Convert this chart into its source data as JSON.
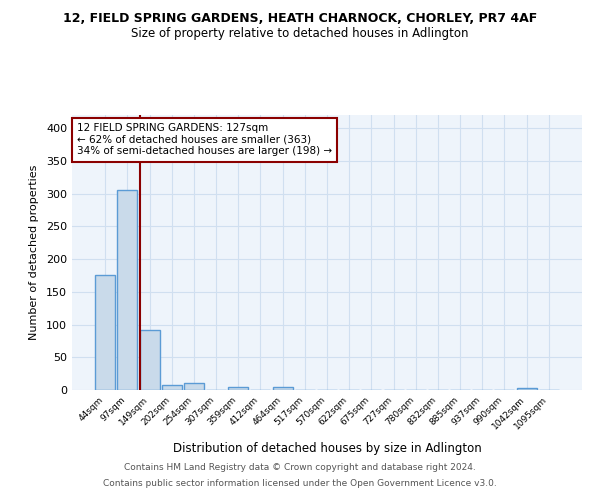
{
  "title1": "12, FIELD SPRING GARDENS, HEATH CHARNOCK, CHORLEY, PR7 4AF",
  "title2": "Size of property relative to detached houses in Adlington",
  "xlabel": "Distribution of detached houses by size in Adlington",
  "ylabel": "Number of detached properties",
  "bin_labels": [
    "44sqm",
    "97sqm",
    "149sqm",
    "202sqm",
    "254sqm",
    "307sqm",
    "359sqm",
    "412sqm",
    "464sqm",
    "517sqm",
    "570sqm",
    "622sqm",
    "675sqm",
    "727sqm",
    "780sqm",
    "832sqm",
    "885sqm",
    "937sqm",
    "990sqm",
    "1042sqm",
    "1095sqm"
  ],
  "bar_heights": [
    175,
    305,
    92,
    8,
    10,
    0,
    4,
    0,
    4,
    0,
    0,
    0,
    0,
    0,
    0,
    0,
    0,
    0,
    0,
    3,
    0
  ],
  "bar_color": "#c9daea",
  "bar_edgecolor": "#5b9bd5",
  "bar_linewidth": 1.0,
  "grid_color": "#d0dff0",
  "bg_color": "#eef4fb",
  "vline_color": "#8b0000",
  "annotation_line1": "12 FIELD SPRING GARDENS: 127sqm",
  "annotation_line2": "← 62% of detached houses are smaller (363)",
  "annotation_line3": "34% of semi-detached houses are larger (198) →",
  "annotation_box_color": "#ffffff",
  "annotation_box_edgecolor": "#8b0000",
  "ylim": [
    0,
    420
  ],
  "yticks": [
    0,
    50,
    100,
    150,
    200,
    250,
    300,
    350,
    400
  ],
  "footer1": "Contains HM Land Registry data © Crown copyright and database right 2024.",
  "footer2": "Contains public sector information licensed under the Open Government Licence v3.0."
}
